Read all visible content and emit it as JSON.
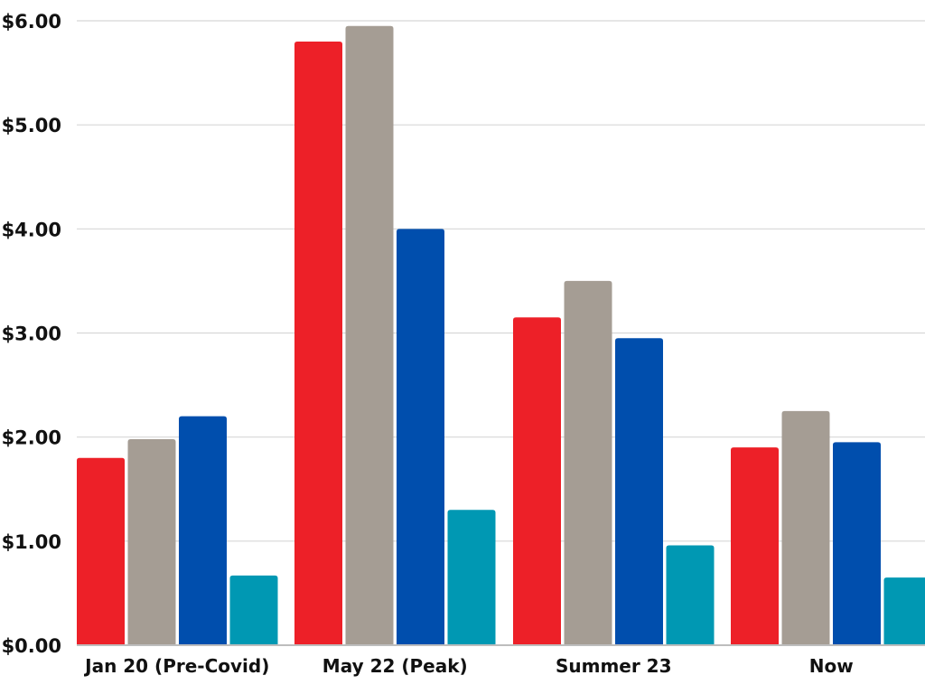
{
  "chart_data": {
    "type": "bar",
    "title": "",
    "xlabel": "",
    "ylabel": "",
    "ylim": [
      0,
      6
    ],
    "yticks": [
      0,
      1,
      2,
      3,
      4,
      5,
      6
    ],
    "ytick_labels": [
      "$0.00",
      "$1.00",
      "$2.00",
      "$3.00",
      "$4.00",
      "$5.00",
      "$6.00"
    ],
    "grid": true,
    "legend": "none",
    "categories": [
      "Jan 20 (Pre-Covid)",
      "May 22 (Peak)",
      "Summer 23",
      "Now"
    ],
    "series": [
      {
        "color": "#ed2028",
        "values": [
          1.8,
          5.8,
          3.15,
          1.9
        ]
      },
      {
        "color": "#a59d94",
        "values": [
          1.98,
          5.95,
          3.5,
          2.25
        ]
      },
      {
        "color": "#004ead",
        "values": [
          2.2,
          4.0,
          2.95,
          1.95
        ]
      },
      {
        "color": "#0098b3",
        "values": [
          0.67,
          1.3,
          0.96,
          0.65
        ]
      }
    ]
  }
}
